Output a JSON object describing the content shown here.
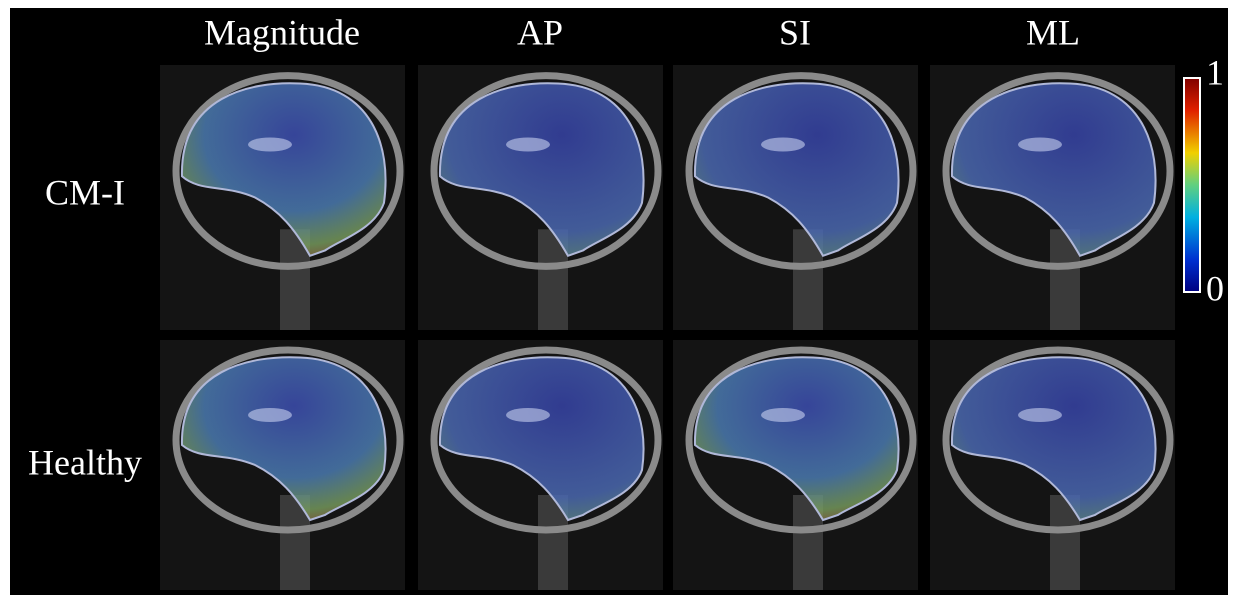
{
  "columns": [
    "Magnitude",
    "AP",
    "SI",
    "ML"
  ],
  "rows": [
    "CM-I",
    "Healthy"
  ],
  "colorbar": {
    "top": "1",
    "bottom": "0"
  }
}
